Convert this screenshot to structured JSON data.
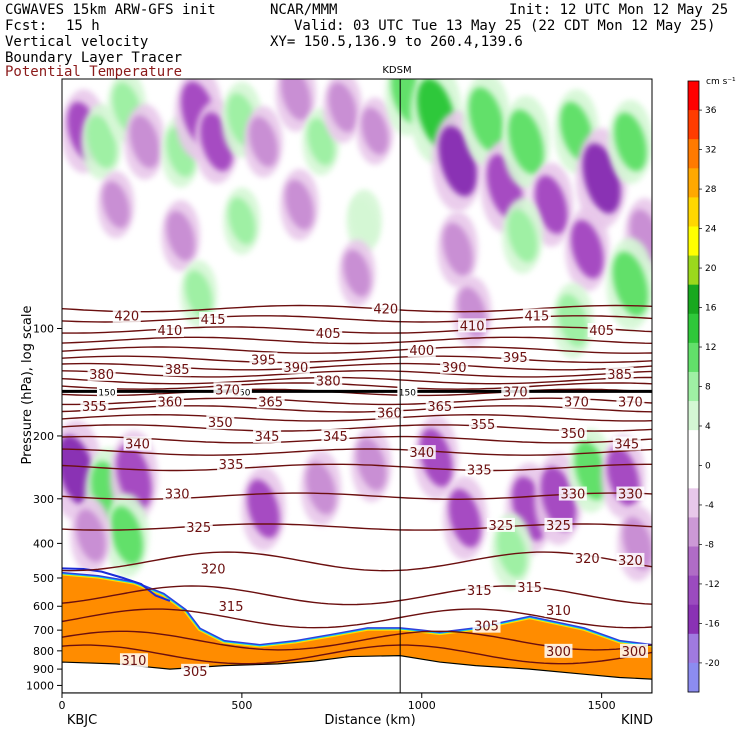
{
  "header": {
    "model": "CGWAVES 15km ARW-GFS init",
    "org": "NCAR/MMM",
    "init": "Init: 12 UTC Mon 12 May 25",
    "fcst_label": "Fcst:",
    "fcst_value": "15 h",
    "valid": "Valid: 03 UTC Tue 13 May 25 (22 CDT Mon 12 May 25)",
    "field1": "Vertical velocity",
    "field2": "Boundary Layer Tracer",
    "field3": "Potential Temperature",
    "xy": "XY= 150.5,136.9 to 260.4,139.6",
    "colors": {
      "field3": "#8b1a1a",
      "theta": "#6b0f0f",
      "tracer": "#ff8c00"
    }
  },
  "chart_data": {
    "type": "heatmap",
    "title": "",
    "xlabel": "Distance (km)",
    "ylabel": "Pressure (hPa), log scale",
    "station_marker": {
      "label": "KDSM",
      "x_km": 940
    },
    "left_station": "KBJC",
    "right_station": "KIND",
    "xlim": [
      0,
      1640
    ],
    "ylim_hpa": [
      1050,
      20
    ],
    "xticks": [
      0,
      500,
      1000,
      1500
    ],
    "yticks": [
      100,
      200,
      300,
      400,
      500,
      600,
      700,
      800,
      900,
      1000
    ],
    "tropopause_hpa": 150,
    "colorbar": {
      "unit": "cm s⁻¹",
      "levels": [
        -20,
        -16,
        -12,
        -8,
        -4,
        0,
        4,
        8,
        12,
        16,
        20,
        24,
        28,
        32,
        36
      ],
      "labels": [
        "-20",
        "-16",
        "-12",
        "-8",
        "-4",
        "0",
        "4",
        "8",
        "12",
        "16",
        "20",
        "24",
        "28",
        "32",
        "36"
      ],
      "colors": [
        "#8c8cf0",
        "#a07ae0",
        "#8a32b4",
        "#9b4bbf",
        "#b06cc6",
        "#cc99d6",
        "#e8c8ea",
        "#ffffff",
        "#ffffff",
        "#d4f7d4",
        "#9ff0a4",
        "#62e06a",
        "#2fc83a",
        "#18a81f",
        "#9bd81c",
        "#ffff00",
        "#ffd700",
        "#ffa800",
        "#ff7a00",
        "#ff3c00",
        "#ff0000"
      ]
    },
    "isentropes": [
      {
        "theta": 420,
        "p": 88
      },
      {
        "theta": 415,
        "p": 94
      },
      {
        "theta": 410,
        "p": 101
      },
      {
        "theta": 405,
        "p": 108
      },
      {
        "theta": 400,
        "p": 115
      },
      {
        "theta": 395,
        "p": 122
      },
      {
        "theta": 390,
        "p": 128
      },
      {
        "theta": 385,
        "p": 134
      },
      {
        "theta": 380,
        "p": 140
      },
      {
        "theta": 375,
        "p": 145
      },
      {
        "theta": 370,
        "p": 151
      },
      {
        "theta": 365,
        "p": 160
      },
      {
        "theta": 360,
        "p": 168
      },
      {
        "theta": 355,
        "p": 178
      },
      {
        "theta": 350,
        "p": 190
      },
      {
        "theta": 345,
        "p": 205
      },
      {
        "theta": 340,
        "p": 222
      },
      {
        "theta": 335,
        "p": 245
      },
      {
        "theta": 330,
        "p": 295
      },
      {
        "theta": 325,
        "p": 360
      },
      {
        "theta": 320,
        "p": 450
      },
      {
        "theta": 315,
        "p": 560
      },
      {
        "theta": 310,
        "p": 650
      },
      {
        "theta": 305,
        "p": 750
      },
      {
        "theta": 300,
        "p": 820
      }
    ],
    "isentrope_labels": [
      {
        "text": "420",
        "x": 180,
        "p": 92
      },
      {
        "text": "410",
        "x": 300,
        "p": 101
      },
      {
        "text": "415",
        "x": 420,
        "p": 94
      },
      {
        "text": "405",
        "x": 740,
        "p": 103
      },
      {
        "text": "420",
        "x": 900,
        "p": 88
      },
      {
        "text": "410",
        "x": 1140,
        "p": 98
      },
      {
        "text": "415",
        "x": 1320,
        "p": 92
      },
      {
        "text": "405",
        "x": 1500,
        "p": 101
      },
      {
        "text": "395",
        "x": 560,
        "p": 122
      },
      {
        "text": "390",
        "x": 650,
        "p": 128
      },
      {
        "text": "400",
        "x": 1000,
        "p": 115
      },
      {
        "text": "395",
        "x": 1260,
        "p": 120
      },
      {
        "text": "380",
        "x": 110,
        "p": 134
      },
      {
        "text": "385",
        "x": 320,
        "p": 130
      },
      {
        "text": "380",
        "x": 740,
        "p": 140
      },
      {
        "text": "390",
        "x": 1090,
        "p": 128
      },
      {
        "text": "385",
        "x": 1550,
        "p": 134
      },
      {
        "text": "370",
        "x": 460,
        "p": 148
      },
      {
        "text": "370",
        "x": 1260,
        "p": 150
      },
      {
        "text": "355",
        "x": 90,
        "p": 165
      },
      {
        "text": "360",
        "x": 300,
        "p": 160
      },
      {
        "text": "365",
        "x": 580,
        "p": 160
      },
      {
        "text": "360",
        "x": 910,
        "p": 172
      },
      {
        "text": "365",
        "x": 1050,
        "p": 165
      },
      {
        "text": "370",
        "x": 1430,
        "p": 160
      },
      {
        "text": "370",
        "x": 1580,
        "p": 160
      },
      {
        "text": "350",
        "x": 440,
        "p": 183
      },
      {
        "text": "355",
        "x": 1170,
        "p": 185
      },
      {
        "text": "345",
        "x": 570,
        "p": 200
      },
      {
        "text": "345",
        "x": 760,
        "p": 200
      },
      {
        "text": "350",
        "x": 1420,
        "p": 196
      },
      {
        "text": "340",
        "x": 210,
        "p": 210
      },
      {
        "text": "345",
        "x": 1570,
        "p": 210
      },
      {
        "text": "340",
        "x": 1000,
        "p": 222
      },
      {
        "text": "335",
        "x": 470,
        "p": 240
      },
      {
        "text": "335",
        "x": 1160,
        "p": 248
      },
      {
        "text": "330",
        "x": 320,
        "p": 290
      },
      {
        "text": "330",
        "x": 1420,
        "p": 290
      },
      {
        "text": "330",
        "x": 1580,
        "p": 290
      },
      {
        "text": "325",
        "x": 380,
        "p": 360
      },
      {
        "text": "325",
        "x": 1220,
        "p": 355
      },
      {
        "text": "325",
        "x": 1380,
        "p": 355
      },
      {
        "text": "320",
        "x": 420,
        "p": 470
      },
      {
        "text": "320",
        "x": 1460,
        "p": 440
      },
      {
        "text": "320",
        "x": 1580,
        "p": 445
      },
      {
        "text": "315",
        "x": 470,
        "p": 600
      },
      {
        "text": "315",
        "x": 1160,
        "p": 540
      },
      {
        "text": "315",
        "x": 1300,
        "p": 530
      },
      {
        "text": "310",
        "x": 1380,
        "p": 615
      },
      {
        "text": "305",
        "x": 1180,
        "p": 680
      },
      {
        "text": "310",
        "x": 200,
        "p": 850
      },
      {
        "text": "305",
        "x": 370,
        "p": 910
      },
      {
        "text": "300",
        "x": 1380,
        "p": 800
      },
      {
        "text": "300",
        "x": 1590,
        "p": 800
      }
    ],
    "tropopause_labels": [
      {
        "text": "150",
        "x": 125
      },
      {
        "text": "150",
        "x": 500
      },
      {
        "text": "150",
        "x": 960
      }
    ],
    "boundary_layer": {
      "surface": [
        [
          0,
          860
        ],
        [
          150,
          870
        ],
        [
          300,
          900
        ],
        [
          450,
          880
        ],
        [
          600,
          870
        ],
        [
          700,
          855
        ],
        [
          800,
          830
        ],
        [
          940,
          825
        ],
        [
          1050,
          860
        ],
        [
          1150,
          880
        ],
        [
          1300,
          900
        ],
        [
          1450,
          930
        ],
        [
          1550,
          950
        ],
        [
          1640,
          960
        ]
      ],
      "top": [
        [
          0,
          490
        ],
        [
          100,
          500
        ],
        [
          200,
          520
        ],
        [
          280,
          560
        ],
        [
          340,
          620
        ],
        [
          380,
          700
        ],
        [
          450,
          760
        ],
        [
          550,
          780
        ],
        [
          650,
          760
        ],
        [
          750,
          730
        ],
        [
          850,
          700
        ],
        [
          940,
          700
        ],
        [
          1000,
          710
        ],
        [
          1050,
          720
        ],
        [
          1150,
          700
        ],
        [
          1300,
          650
        ],
        [
          1450,
          700
        ],
        [
          1550,
          760
        ],
        [
          1640,
          780
        ]
      ],
      "mountain_top": [
        [
          0,
          470
        ],
        [
          60,
          472
        ],
        [
          110,
          480
        ],
        [
          170,
          500
        ],
        [
          220,
          520
        ],
        [
          260,
          560
        ],
        [
          300,
          580
        ]
      ]
    },
    "vertical_velocity_cells": [
      {
        "x": 60,
        "p": 28,
        "w": -8
      },
      {
        "x": 110,
        "p": 30,
        "w": 6
      },
      {
        "x": 180,
        "p": 24,
        "w": 5
      },
      {
        "x": 230,
        "p": 30,
        "w": -6
      },
      {
        "x": 330,
        "p": 32,
        "w": 5
      },
      {
        "x": 380,
        "p": 25,
        "w": -10
      },
      {
        "x": 430,
        "p": 30,
        "w": -8
      },
      {
        "x": 500,
        "p": 26,
        "w": 6
      },
      {
        "x": 560,
        "p": 30,
        "w": -5
      },
      {
        "x": 650,
        "p": 22,
        "w": -6
      },
      {
        "x": 720,
        "p": 30,
        "w": 4
      },
      {
        "x": 780,
        "p": 24,
        "w": -5
      },
      {
        "x": 870,
        "p": 28,
        "w": -4
      },
      {
        "x": 960,
        "p": 22,
        "w": 8
      },
      {
        "x": 1040,
        "p": 25,
        "w": 12
      },
      {
        "x": 1100,
        "p": 34,
        "w": -12
      },
      {
        "x": 1180,
        "p": 26,
        "w": 10
      },
      {
        "x": 1230,
        "p": 40,
        "w": -10
      },
      {
        "x": 1290,
        "p": 30,
        "w": 10
      },
      {
        "x": 1360,
        "p": 45,
        "w": -8
      },
      {
        "x": 1430,
        "p": 28,
        "w": 8
      },
      {
        "x": 1500,
        "p": 38,
        "w": -12
      },
      {
        "x": 1580,
        "p": 30,
        "w": 8
      },
      {
        "x": 1620,
        "p": 55,
        "w": -6
      },
      {
        "x": 150,
        "p": 45,
        "w": -4
      },
      {
        "x": 330,
        "p": 55,
        "w": -5
      },
      {
        "x": 500,
        "p": 50,
        "w": 4
      },
      {
        "x": 660,
        "p": 45,
        "w": -5
      },
      {
        "x": 840,
        "p": 50,
        "w": 3
      },
      {
        "x": 1100,
        "p": 60,
        "w": -6
      },
      {
        "x": 1280,
        "p": 55,
        "w": 6
      },
      {
        "x": 1460,
        "p": 60,
        "w": -8
      },
      {
        "x": 1580,
        "p": 75,
        "w": 10
      },
      {
        "x": 1420,
        "p": 95,
        "w": 6
      },
      {
        "x": 1140,
        "p": 90,
        "w": -5
      },
      {
        "x": 820,
        "p": 70,
        "w": -4
      },
      {
        "x": 380,
        "p": 80,
        "w": 4
      },
      {
        "x": 40,
        "p": 250,
        "w": -12
      },
      {
        "x": 130,
        "p": 290,
        "w": 10
      },
      {
        "x": 200,
        "p": 260,
        "w": -10
      },
      {
        "x": 180,
        "p": 380,
        "w": 8
      },
      {
        "x": 80,
        "p": 380,
        "w": -6
      },
      {
        "x": 560,
        "p": 320,
        "w": -8
      },
      {
        "x": 720,
        "p": 280,
        "w": -6
      },
      {
        "x": 860,
        "p": 240,
        "w": -6
      },
      {
        "x": 1040,
        "p": 230,
        "w": -8
      },
      {
        "x": 1120,
        "p": 340,
        "w": -8
      },
      {
        "x": 1300,
        "p": 320,
        "w": -10
      },
      {
        "x": 1380,
        "p": 300,
        "w": -10
      },
      {
        "x": 1470,
        "p": 250,
        "w": 8
      },
      {
        "x": 1560,
        "p": 260,
        "w": -8
      },
      {
        "x": 1600,
        "p": 400,
        "w": -6
      },
      {
        "x": 1250,
        "p": 420,
        "w": 6
      }
    ]
  }
}
